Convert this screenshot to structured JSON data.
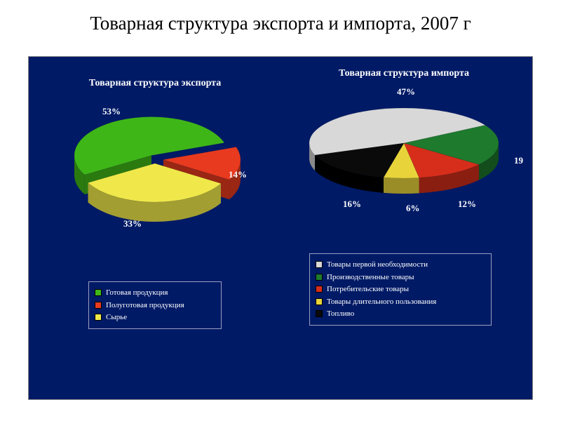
{
  "page": {
    "title": "Товарная структура экспорта и импорта, 2007 г",
    "background_color": "#ffffff",
    "content_background": "#001a66"
  },
  "export_chart": {
    "type": "pie",
    "title": "Товарная структура экспорта",
    "title_fontsize": 14,
    "title_color": "#ffffff",
    "slices": [
      {
        "label": "Готовая продукция",
        "value": 53,
        "pct": "53%",
        "top_color": "#3fb618",
        "side_color": "#2a7a10"
      },
      {
        "label": "Полуготовая продукция",
        "value": 14,
        "pct": "14%",
        "top_color": "#e83a1f",
        "side_color": "#9a2614"
      },
      {
        "label": "Сырье",
        "value": 33,
        "pct": "33%",
        "top_color": "#f0e84a",
        "side_color": "#a39e32"
      }
    ],
    "label_color": "#ffffff",
    "label_fontsize": 13,
    "start_angle_deg": 150
  },
  "import_chart": {
    "type": "pie",
    "title": "Товарная структура импорта",
    "title_fontsize": 14,
    "title_color": "#ffffff",
    "slices": [
      {
        "label": "Товары первой необходимости",
        "value": 47,
        "pct": "47%",
        "top_color": "#d8d8d8",
        "side_color": "#8a8a8a"
      },
      {
        "label": "Производственные товары",
        "value": 19,
        "pct": "19",
        "top_color": "#1e7a2d",
        "side_color": "#134d1c"
      },
      {
        "label": "Потребительские товары",
        "value": 12,
        "pct": "12%",
        "top_color": "#d62e1a",
        "side_color": "#8a1e11"
      },
      {
        "label": "Товары длительного пользования",
        "value": 6,
        "pct": "6%",
        "top_color": "#e8d43a",
        "side_color": "#9a8d27"
      },
      {
        "label": "Топливо",
        "value": 16,
        "pct": "16%",
        "top_color": "#0a0a0a",
        "side_color": "#000000"
      }
    ],
    "label_color": "#ffffff",
    "label_fontsize": 13,
    "start_angle_deg": 160
  },
  "legends": {
    "export": {
      "border_color": "#9aa0c0",
      "text_color": "#ffffff",
      "items": [
        {
          "swatch": "#3fb618",
          "label": "Готовая продукция"
        },
        {
          "swatch": "#e83a1f",
          "label": "Полуготовая продукция"
        },
        {
          "swatch": "#f0e84a",
          "label": "Сырье"
        }
      ]
    },
    "import": {
      "border_color": "#9aa0c0",
      "text_color": "#ffffff",
      "items": [
        {
          "swatch": "#d8d8d8",
          "label": "Товары первой необходимости"
        },
        {
          "swatch": "#1e7a2d",
          "label": "Производственные товары"
        },
        {
          "swatch": "#d62e1a",
          "label": "Потребительские товары"
        },
        {
          "swatch": "#e8d43a",
          "label": "Товары длительного пользования"
        },
        {
          "swatch": "#0a0a0a",
          "label": "Топливо"
        }
      ]
    }
  }
}
